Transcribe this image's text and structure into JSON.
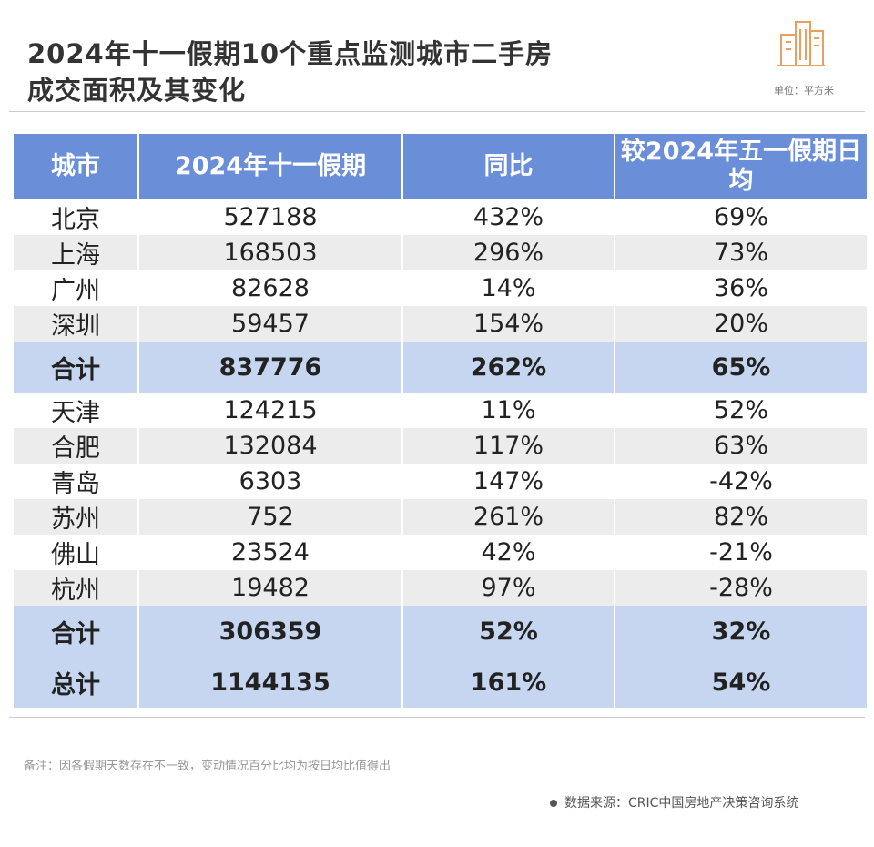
{
  "header": {
    "title": [
      "2024年十一假期10个重点监测城市二手房",
      "成交面积及其变化"
    ],
    "unit": "单位：平方米"
  },
  "table": {
    "columns": [
      "城市",
      "2024年十一假期",
      "同比",
      "较2024年五一假期日均"
    ],
    "rows": [
      [
        "北京",
        "527188",
        "432%",
        "69%"
      ],
      [
        "上海",
        "168503",
        "296%",
        "73%"
      ],
      [
        "广州",
        "82628",
        "14%",
        "36%"
      ],
      [
        "深圳",
        "59457",
        "154%",
        "20%"
      ],
      [
        "合计",
        "837776",
        "262%",
        "65%"
      ],
      [
        "天津",
        "124215",
        "11%",
        "52%"
      ],
      [
        "合肥",
        "132084",
        "117%",
        "63%"
      ],
      [
        "青岛",
        "6303",
        "147%",
        "-42%"
      ],
      [
        "苏州",
        "752",
        "261%",
        "82%"
      ],
      [
        "佛山",
        "23524",
        "42%",
        "-21%"
      ],
      [
        "杭州",
        "19482",
        "97%",
        "-28%"
      ],
      [
        "合计",
        "306359",
        "52%",
        "32%"
      ],
      [
        "总计",
        "1144135",
        "161%",
        "54%"
      ]
    ]
  },
  "footer": {
    "note": "备注：因各假期天数存在不一致，变动情况百分比均为按日均比值得出",
    "source": "数据来源：CRIC中国房地产决策咨询系统"
  }
}
